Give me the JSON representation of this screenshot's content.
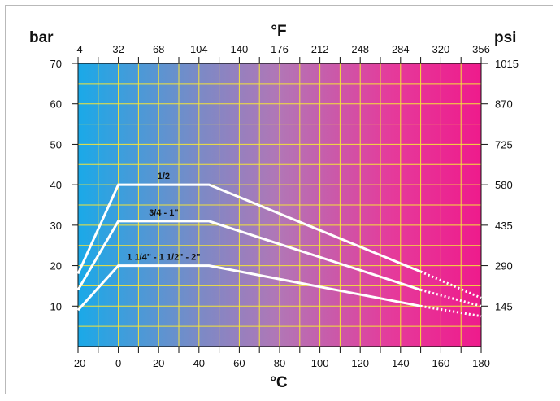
{
  "chart_data": {
    "type": "line",
    "title": "",
    "left_unit": "bar",
    "right_unit": "psi",
    "top_unit": "°F",
    "bottom_unit": "°C",
    "xlim": [
      -20,
      180
    ],
    "ylim": [
      0,
      70
    ],
    "x_ticks_celsius": [
      "-20",
      "0",
      "20",
      "40",
      "60",
      "80",
      "100",
      "120",
      "140",
      "160",
      "180"
    ],
    "x_ticks_fahrenheit": [
      "-4",
      "32",
      "68",
      "104",
      "140",
      "176",
      "212",
      "248",
      "284",
      "320",
      "356"
    ],
    "y_ticks_bar": [
      "10",
      "20",
      "30",
      "40",
      "50",
      "60",
      "70"
    ],
    "y_ticks_psi": [
      "145",
      "290",
      "435",
      "580",
      "725",
      "870",
      "1015"
    ],
    "grid": true,
    "background_gradient": [
      "#1aa9e8",
      "#7b8ac6",
      "#b276b6",
      "#e53a9b",
      "#ee1b8c"
    ],
    "grid_color": "#f3e33a",
    "series": [
      {
        "name": "1/2",
        "solid": [
          [
            -20,
            18
          ],
          [
            0,
            40
          ],
          [
            45,
            40
          ],
          [
            150,
            18.5
          ]
        ],
        "dotted": [
          [
            150,
            18.5
          ],
          [
            180,
            12
          ]
        ]
      },
      {
        "name": "3/4 - 1\"",
        "solid": [
          [
            -20,
            14
          ],
          [
            0,
            31
          ],
          [
            45,
            31
          ],
          [
            150,
            14
          ]
        ],
        "dotted": [
          [
            150,
            14
          ],
          [
            180,
            10
          ]
        ]
      },
      {
        "name": "1 1/4\" - 1 1/2\" - 2\"",
        "solid": [
          [
            -20,
            9
          ],
          [
            0,
            20
          ],
          [
            45,
            20
          ],
          [
            150,
            10
          ]
        ],
        "dotted": [
          [
            150,
            10
          ],
          [
            180,
            7.5
          ]
        ]
      }
    ]
  }
}
